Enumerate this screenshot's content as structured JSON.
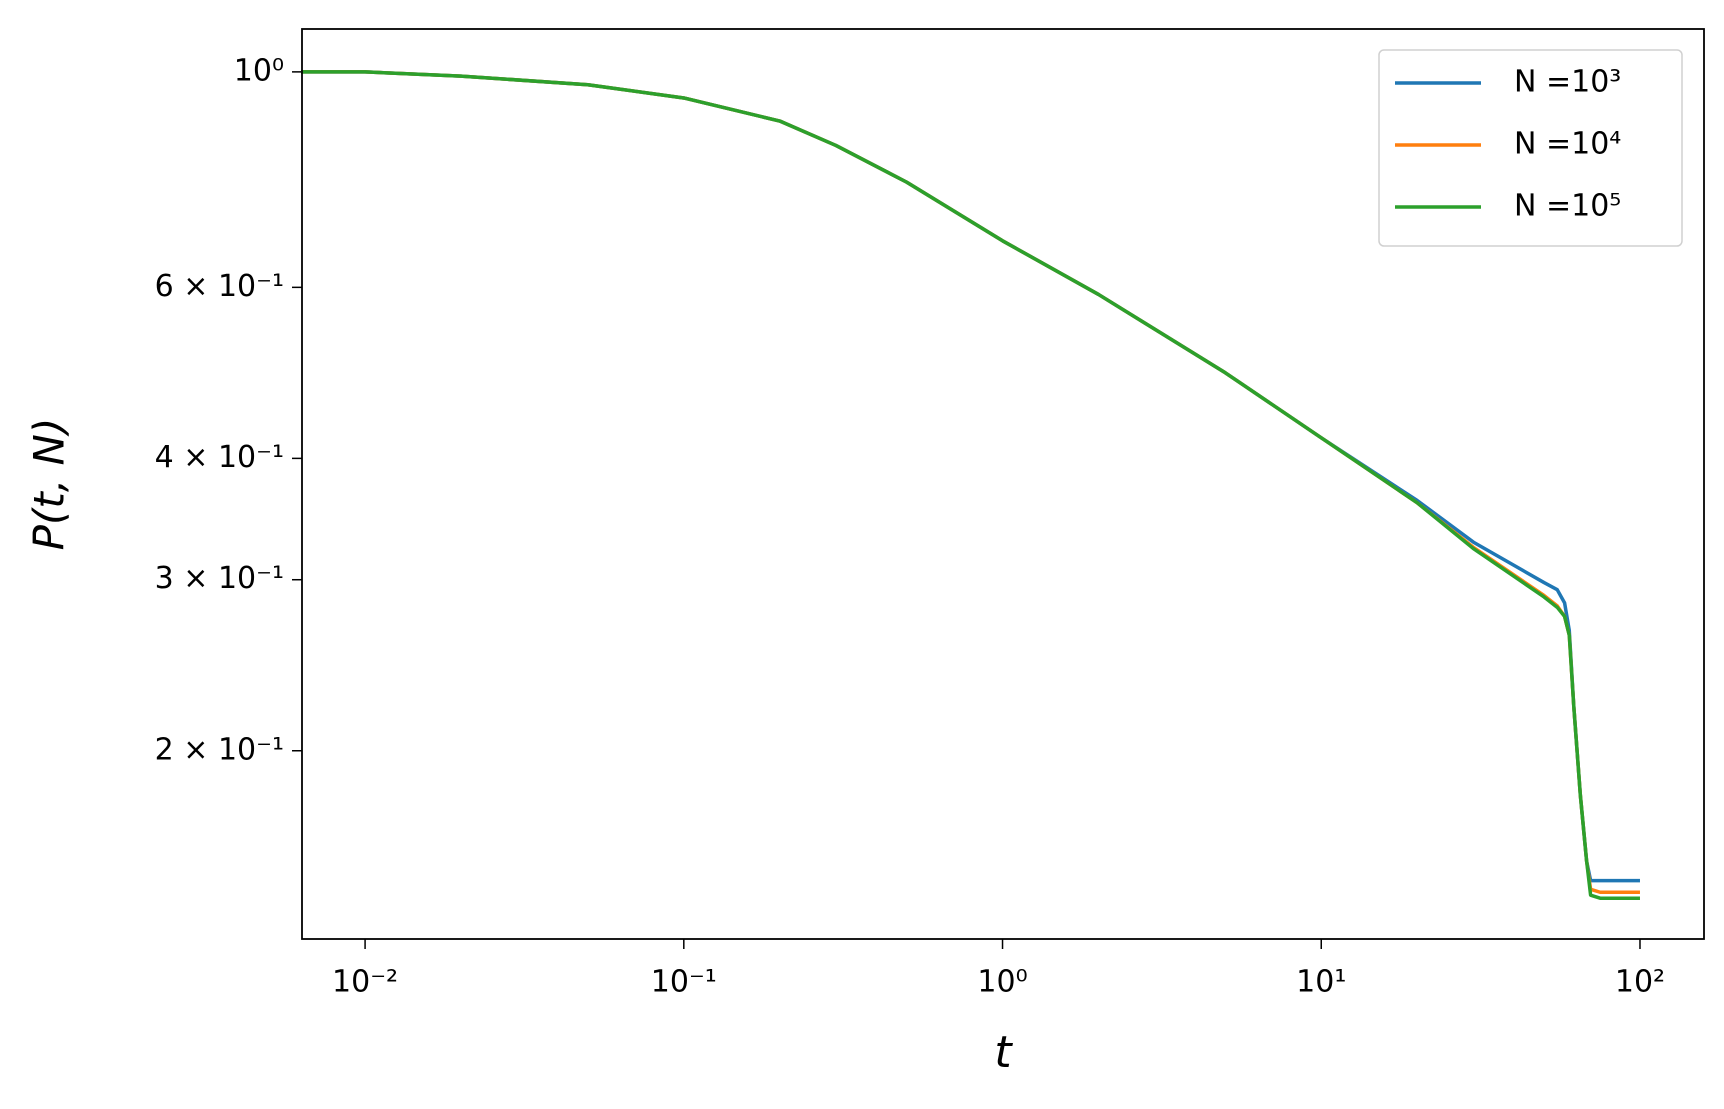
{
  "chart_data": {
    "type": "line",
    "x_label": "t",
    "y_label": "P(t, N)",
    "x": [
      0.0063,
      0.01,
      0.02,
      0.05,
      0.1,
      0.2,
      0.3,
      0.5,
      1,
      2,
      5,
      10,
      20,
      30,
      50,
      55,
      58,
      60,
      62,
      65,
      68,
      70,
      75,
      100
    ],
    "series": [
      {
        "name": "N =10³",
        "color": "#1f77b4",
        "values": [
          1.0,
          1.0,
          0.99,
          0.97,
          0.94,
          0.89,
          0.84,
          0.77,
          0.67,
          0.59,
          0.49,
          0.42,
          0.362,
          0.328,
          0.298,
          0.293,
          0.284,
          0.266,
          0.222,
          0.18,
          0.154,
          0.147,
          0.147,
          0.147
        ]
      },
      {
        "name": "N =10⁴",
        "color": "#ff7f0e",
        "values": [
          1.0,
          1.0,
          0.99,
          0.97,
          0.94,
          0.89,
          0.84,
          0.77,
          0.67,
          0.59,
          0.49,
          0.42,
          0.36,
          0.324,
          0.289,
          0.282,
          0.275,
          0.263,
          0.222,
          0.18,
          0.154,
          0.144,
          0.143,
          0.143
        ]
      },
      {
        "name": "N =10⁵",
        "color": "#2ca02c",
        "values": [
          1.0,
          1.0,
          0.99,
          0.97,
          0.94,
          0.89,
          0.84,
          0.77,
          0.67,
          0.59,
          0.49,
          0.42,
          0.36,
          0.323,
          0.288,
          0.281,
          0.275,
          0.263,
          0.222,
          0.18,
          0.154,
          0.142,
          0.141,
          0.141
        ]
      }
    ],
    "xlim": [
      0.00634,
      158.8
    ],
    "ylim": [
      0.128,
      1.107
    ],
    "xscale": "log",
    "yscale": "log",
    "xticks": [
      {
        "value": 0.01,
        "label": "10⁻²"
      },
      {
        "value": 0.1,
        "label": "10⁻¹"
      },
      {
        "value": 1,
        "label": "10⁰"
      },
      {
        "value": 10,
        "label": "10¹"
      },
      {
        "value": 100,
        "label": "10²"
      }
    ],
    "yticks": [
      {
        "value": 1,
        "label": "10⁰"
      },
      {
        "value": 0.6,
        "label": "6 × 10⁻¹"
      },
      {
        "value": 0.4,
        "label": "4 × 10⁻¹"
      },
      {
        "value": 0.3,
        "label": "3 × 10⁻¹"
      },
      {
        "value": 0.2,
        "label": "2 × 10⁻¹"
      }
    ],
    "legend": "upper right",
    "grid": false
  }
}
